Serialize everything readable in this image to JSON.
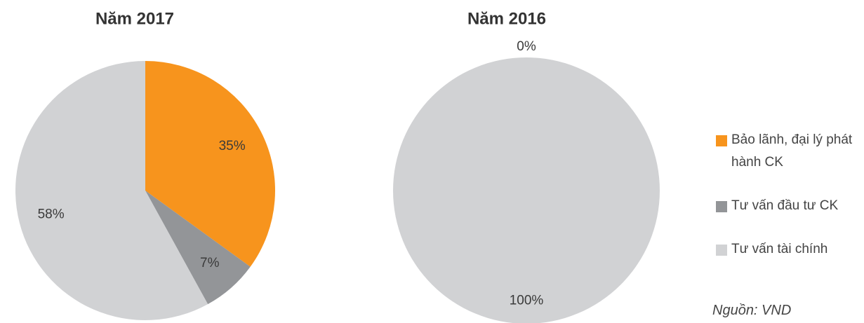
{
  "chart_data": [
    {
      "type": "pie",
      "title": "Năm 2017",
      "values": [
        35,
        7,
        58
      ],
      "value_labels": [
        "35%",
        "7%",
        "58%"
      ]
    },
    {
      "type": "pie",
      "title": "Năm 2016",
      "values": [
        0,
        0,
        100
      ],
      "value_labels": [
        "0%",
        null,
        "100%"
      ]
    }
  ],
  "legend": {
    "categories": [
      "Bảo lãnh, đại lý phát hành CK",
      "Tư vấn đầu tư CK",
      "Tư vấn tài chính"
    ],
    "colors": [
      "#f7941d",
      "#939598",
      "#d1d2d4"
    ]
  },
  "source": "Nguồn: VND"
}
